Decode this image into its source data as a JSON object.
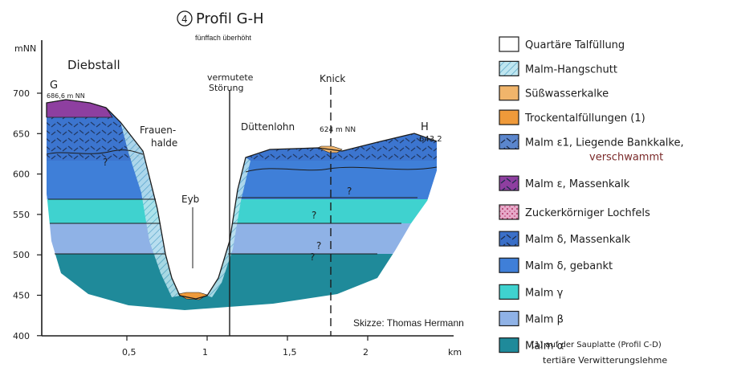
{
  "title": "Profil G-H",
  "title_number": "4",
  "subtitle": "fünffach überhöht",
  "credit": "Skizze: Thomas Hermann",
  "y_axis": {
    "unit": "mNN",
    "ticks": [
      "700",
      "650",
      "600",
      "550",
      "500",
      "450",
      "400"
    ]
  },
  "x_axis": {
    "unit": "km",
    "ticks": [
      "0,5",
      "1",
      "1,5",
      "2"
    ]
  },
  "labels": {
    "diebstall": "Diebstall",
    "g": "G",
    "g_height": "686,6 m NN",
    "frauenhalde": "Frauen-\nhalde",
    "eyb": "Eyb",
    "stoerung": "vermutete\nStörung",
    "duettenlohn": "Düttenlohn",
    "knick": "Knick",
    "knick_height": "624 m NN",
    "h": "H",
    "h_height": "643,2",
    "q1": "?",
    "q2": "?",
    "q3": "?",
    "q4": "?",
    "q5": "?"
  },
  "legend": [
    {
      "label": "Quartäre Talfüllung",
      "color": "#ffffff",
      "pattern": "none"
    },
    {
      "label": "Malm-Hangschutt",
      "color": "#bfe6f0",
      "pattern": "hatch"
    },
    {
      "label": "Süßwasserkalke",
      "color": "#f1b56b",
      "pattern": "none"
    },
    {
      "label": "Trockentalfüllungen (1)",
      "color": "#ef9a3a",
      "pattern": "none"
    },
    {
      "label": "Malm ε1, Liegende Bankkalke,",
      "label2": "verschwammt",
      "color": "#5b86cc",
      "pattern": "dash"
    },
    {
      "label": "Malm ε, Massenkalk",
      "color": "#8e3fa0",
      "pattern": "dash"
    },
    {
      "label": "Zuckerkörniger Lochfels",
      "color": "#d98bb8",
      "pattern": "dots"
    },
    {
      "label": "Malm δ, Massenkalk",
      "color": "#3a6fc8",
      "pattern": "dash"
    },
    {
      "label": "Malm δ, gebankt",
      "color": "#3f7fd8",
      "pattern": "none"
    },
    {
      "label": "Malm γ",
      "color": "#3fd2cf",
      "pattern": "none"
    },
    {
      "label": "Malm β",
      "color": "#8fb2e6",
      "pattern": "none"
    },
    {
      "label": "Malm α",
      "color": "#1f8a9a",
      "pattern": "none"
    }
  ],
  "footnote": {
    "line1": "(1) auf der Sauplatte (Profil C-D)",
    "line2": "tertiäre Verwitterungslehme"
  }
}
